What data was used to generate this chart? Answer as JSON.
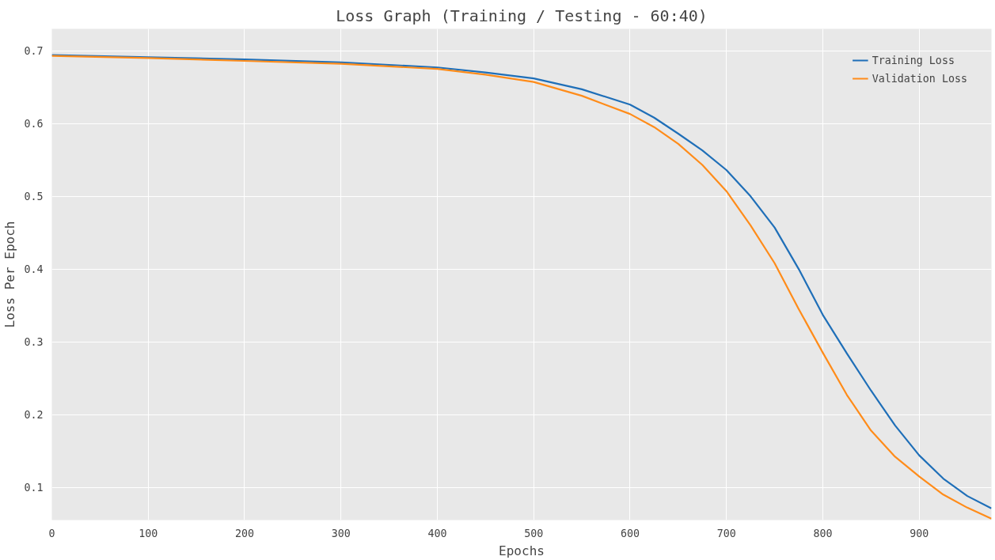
{
  "chart_data": {
    "type": "line",
    "title": "Loss Graph (Training / Testing - 60:40)",
    "xlabel": "Epochs",
    "ylabel": "Loss Per Epoch",
    "x": [
      0,
      100,
      200,
      300,
      400,
      450,
      500,
      550,
      600,
      625,
      650,
      675,
      700,
      725,
      750,
      775,
      800,
      825,
      850,
      875,
      900,
      925,
      950,
      975
    ],
    "series": [
      {
        "name": "Training Loss",
        "color": "#1f6fb8",
        "values": [
          0.694,
          0.691,
          0.688,
          0.684,
          0.677,
          0.67,
          0.662,
          0.647,
          0.626,
          0.608,
          0.586,
          0.563,
          0.536,
          0.5,
          0.457,
          0.4,
          0.337,
          0.284,
          0.233,
          0.185,
          0.144,
          0.112,
          0.088,
          0.071
        ]
      },
      {
        "name": "Validation Loss",
        "color": "#ff8c1a",
        "values": [
          0.693,
          0.69,
          0.686,
          0.682,
          0.675,
          0.667,
          0.657,
          0.638,
          0.613,
          0.595,
          0.572,
          0.543,
          0.507,
          0.46,
          0.408,
          0.345,
          0.285,
          0.227,
          0.178,
          0.142,
          0.115,
          0.09,
          0.072,
          0.057
        ]
      }
    ],
    "xlim": [
      0,
      975
    ],
    "ylim": [
      0.055,
      0.73
    ],
    "xticks": [
      0,
      100,
      200,
      300,
      400,
      500,
      600,
      700,
      800,
      900
    ],
    "yticks": [
      0.1,
      0.2,
      0.3,
      0.4,
      0.5,
      0.6,
      0.7
    ],
    "grid": true,
    "legend": "top right",
    "line_style": "solid"
  }
}
